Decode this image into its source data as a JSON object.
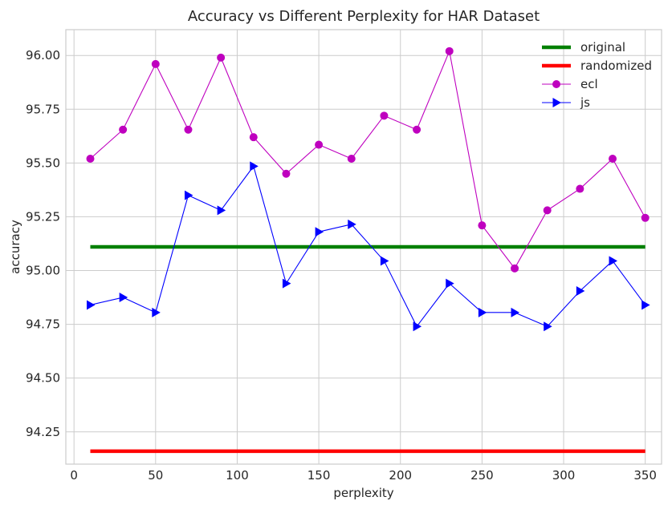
{
  "chart_data": {
    "type": "line",
    "title": "Accuracy vs Different Perplexity for HAR Dataset",
    "xlabel": "perplexity",
    "ylabel": "accuracy",
    "xlim": [
      -5,
      360
    ],
    "ylim": [
      94.1,
      96.12
    ],
    "xticks": [
      0,
      50,
      100,
      150,
      200,
      250,
      300,
      350
    ],
    "xtick_labels": [
      "0",
      "50",
      "100",
      "150",
      "200",
      "250",
      "300",
      "350"
    ],
    "yticks": [
      94.25,
      94.5,
      94.75,
      95.0,
      95.25,
      95.5,
      95.75,
      96.0
    ],
    "ytick_labels": [
      "94.25",
      "94.50",
      "94.75",
      "95.00",
      "95.25",
      "95.50",
      "95.75",
      "96.00"
    ],
    "grid": true,
    "legend_position": "top-right",
    "series": [
      {
        "name": "original",
        "color": "#008000",
        "style": "thick-line",
        "x": [
          10,
          350
        ],
        "values": [
          95.11,
          95.11
        ]
      },
      {
        "name": "randomized",
        "color": "#ff0000",
        "style": "thick-line",
        "x": [
          10,
          350
        ],
        "values": [
          94.16,
          94.16
        ]
      },
      {
        "name": "ecl",
        "color": "#bf00bf",
        "style": "line-circle",
        "x": [
          10,
          30,
          50,
          70,
          90,
          110,
          130,
          150,
          170,
          190,
          210,
          230,
          250,
          270,
          290,
          310,
          330,
          350
        ],
        "values": [
          95.52,
          95.655,
          95.96,
          95.655,
          95.99,
          95.62,
          95.45,
          95.585,
          95.52,
          95.72,
          95.655,
          96.02,
          95.21,
          95.01,
          95.28,
          95.38,
          95.52,
          95.245
        ]
      },
      {
        "name": "js",
        "color": "#0000ff",
        "style": "line-triangle",
        "x": [
          10,
          30,
          50,
          70,
          90,
          110,
          130,
          150,
          170,
          190,
          210,
          230,
          250,
          270,
          290,
          310,
          330,
          350
        ],
        "values": [
          94.84,
          94.875,
          94.805,
          95.35,
          95.28,
          95.485,
          94.94,
          95.18,
          95.215,
          95.045,
          94.74,
          94.94,
          94.805,
          94.805,
          94.74,
          94.905,
          95.045,
          94.84
        ]
      }
    ]
  }
}
